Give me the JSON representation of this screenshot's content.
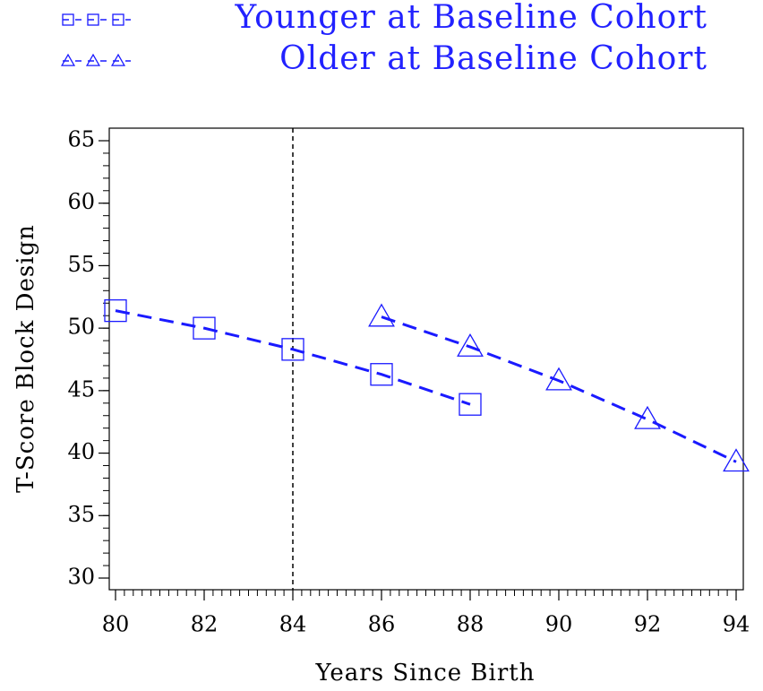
{
  "chart_data": {
    "type": "line",
    "xlabel": "Years Since Birth",
    "ylabel": "T-Score Block Design",
    "series": [
      {
        "name": "Younger at Baseline Cohort",
        "color": "#1a1aff",
        "marker": "square",
        "x": [
          80,
          82,
          84,
          86,
          88
        ],
        "values": [
          51.4,
          50.0,
          48.3,
          46.3,
          43.9
        ]
      },
      {
        "name": "Older at Baseline Cohort",
        "color": "#1a1aff",
        "marker": "triangle",
        "x": [
          86,
          88,
          90,
          92,
          94
        ],
        "values": [
          50.9,
          48.5,
          45.8,
          42.7,
          39.3
        ]
      }
    ],
    "xlim": [
      80,
      94
    ],
    "xticks": [
      80,
      82,
      84,
      86,
      88,
      90,
      92,
      94
    ],
    "ylim": [
      30,
      65
    ],
    "yticks": [
      30,
      35,
      40,
      45,
      50,
      55,
      60,
      65
    ],
    "reference_line_x": 84,
    "legend": "top"
  }
}
